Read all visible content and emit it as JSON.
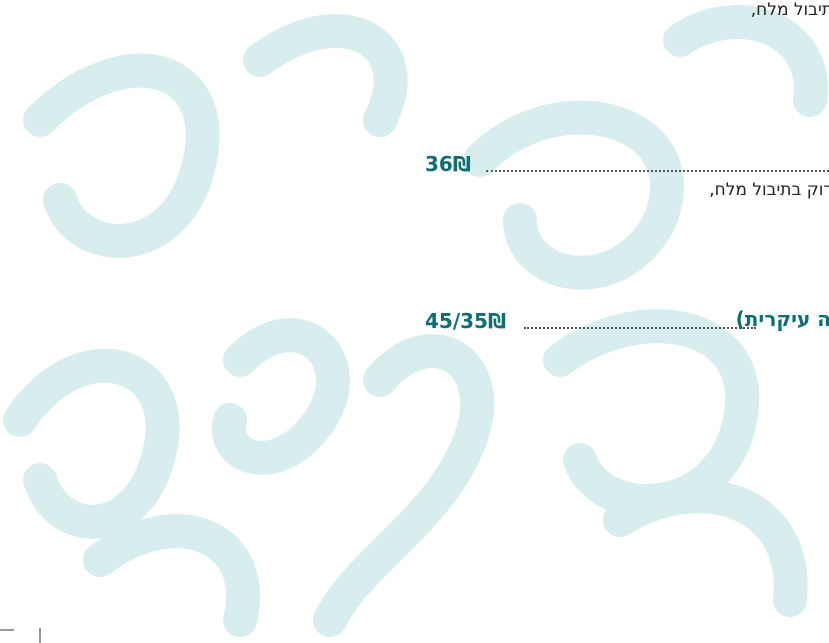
{
  "menu": {
    "items": [
      {
        "description": "תיבול מלח,"
      },
      {
        "price": "36₪",
        "description": "רוק בתיבול מלח,"
      },
      {
        "name": "ה עיקרית)",
        "price": "45/35₪"
      }
    ]
  }
}
